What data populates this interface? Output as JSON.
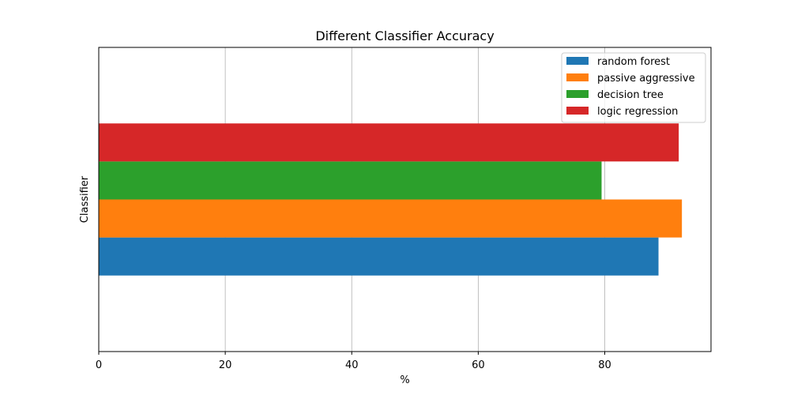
{
  "chart_data": {
    "type": "bar",
    "orientation": "horizontal",
    "title": "Different Classifier Accuracy",
    "xlabel": "%",
    "ylabel": "Classifier",
    "xlim": [
      0,
      96.8
    ],
    "xticks": [
      0,
      20,
      40,
      60,
      80
    ],
    "grid": {
      "x": true,
      "y": false
    },
    "legend_position": "top-right",
    "series": [
      {
        "name": "random forest",
        "value": 88.5,
        "color": "#1f77b4"
      },
      {
        "name": "passive aggressive",
        "value": 92.2,
        "color": "#ff7f0e"
      },
      {
        "name": "decision tree",
        "value": 79.5,
        "color": "#2ca02c"
      },
      {
        "name": "logic regression",
        "value": 91.7,
        "color": "#d62728"
      }
    ]
  }
}
